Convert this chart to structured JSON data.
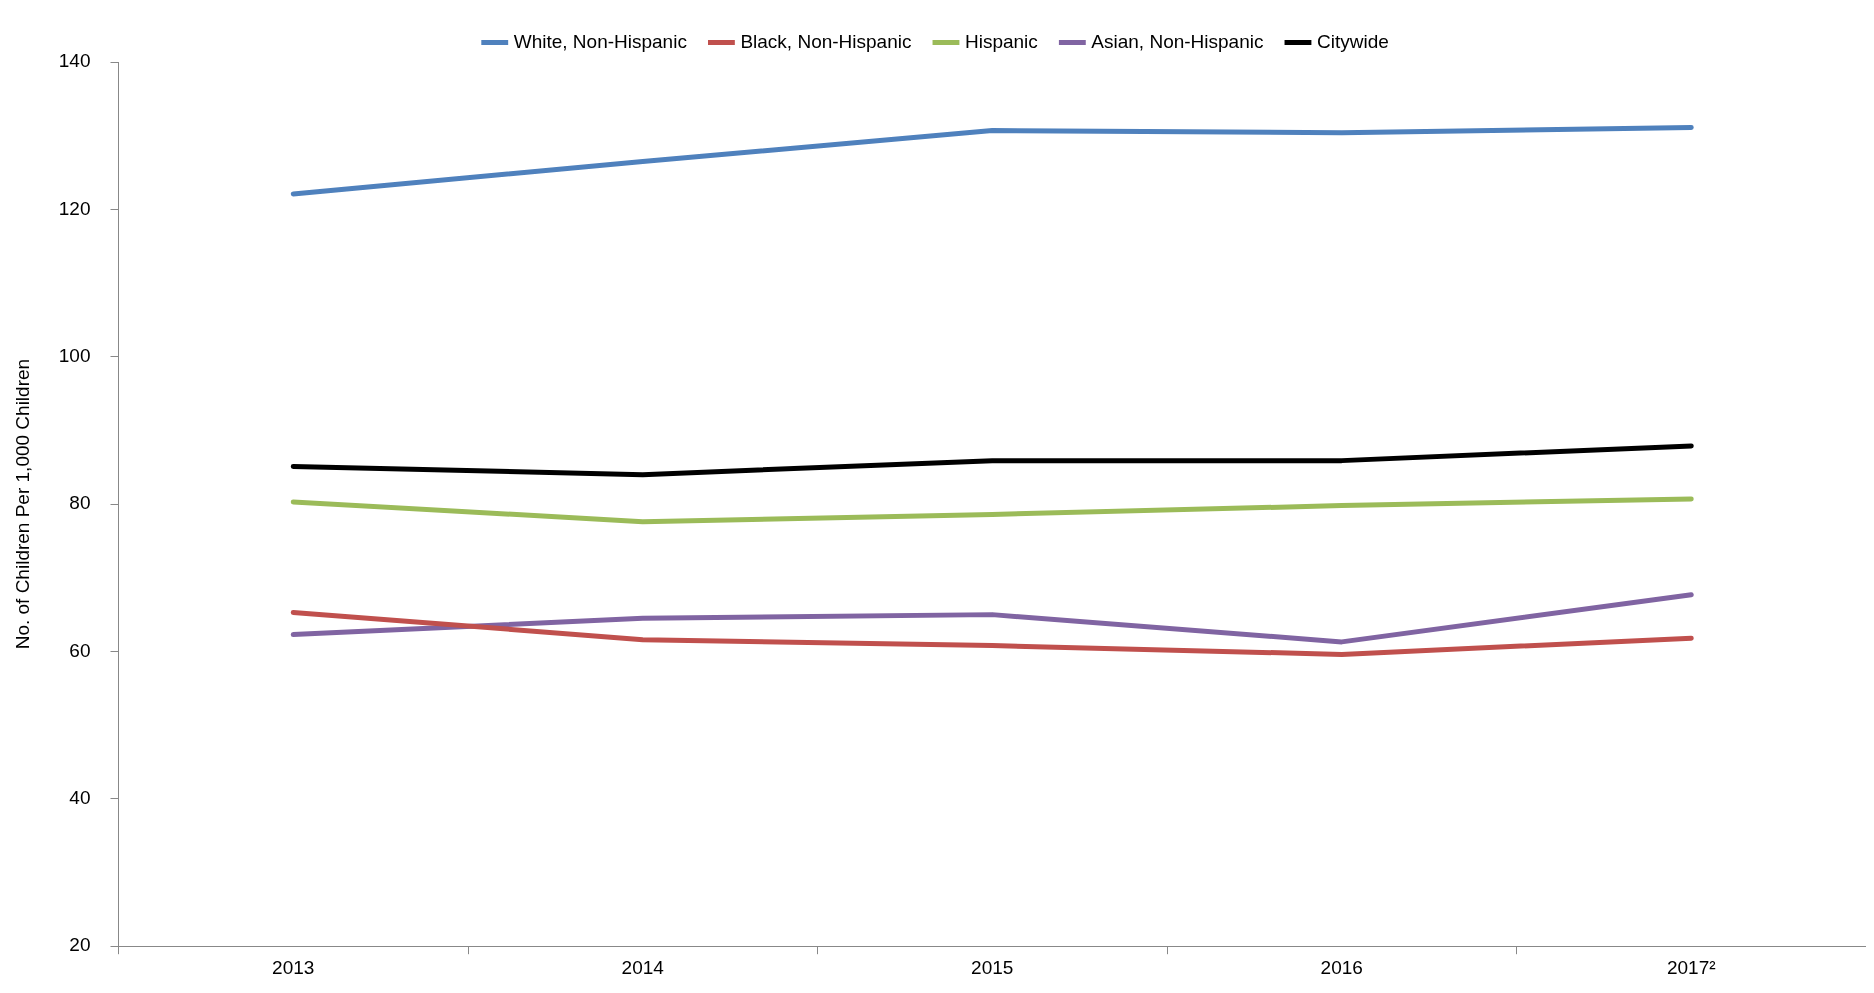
{
  "chart_data": {
    "type": "line",
    "ylabel": "No. of Children Per 1,000 Children",
    "categories": [
      "2013",
      "2014",
      "2015",
      "2016",
      "2017²"
    ],
    "series": [
      {
        "name": "White, Non-Hispanic",
        "color": "#4f81bd",
        "values": [
          122.1,
          126.5,
          130.7,
          130.4,
          131.1
        ]
      },
      {
        "name": "Black, Non-Hispanic",
        "color": "#c0504d",
        "values": [
          65.3,
          61.6,
          60.8,
          59.6,
          61.8
        ]
      },
      {
        "name": "Hispanic",
        "color": "#9bbb59",
        "values": [
          80.3,
          77.6,
          78.6,
          79.8,
          80.7
        ]
      },
      {
        "name": "Asian, Non-Hispanic",
        "color": "#8064a2",
        "values": [
          62.3,
          64.5,
          65.0,
          61.3,
          67.7
        ]
      },
      {
        "name": "Citywide",
        "color": "#000000",
        "values": [
          85.1,
          84.0,
          85.9,
          85.9,
          87.9
        ]
      }
    ],
    "ylim": [
      20,
      140
    ],
    "yticks": [
      20,
      40,
      60,
      80,
      100,
      120,
      140
    ],
    "grid": false,
    "legend": "top",
    "marker": "none",
    "line_style": "solid"
  }
}
